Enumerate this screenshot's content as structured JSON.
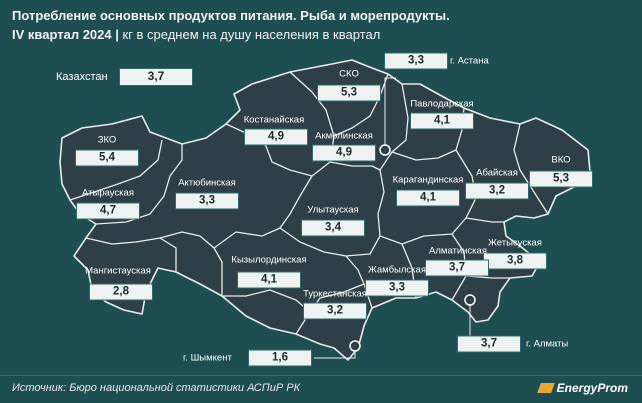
{
  "title": "Потребление основных продуктов питания. Рыба и морепродукты.",
  "subtitle_period": "IV квартал 2024",
  "subtitle_unit": "кг в среднем на душу населения в квартал",
  "colors": {
    "background": "#1e4e52",
    "map_fill": "#2f3f47",
    "border": "#e6ecec",
    "box_fill": "#eef3f2",
    "box_border": "#2b6b6b"
  },
  "national": {
    "label": "Казахстан",
    "value": "3,7"
  },
  "regions": [
    {
      "id": "sko",
      "label": "СКО",
      "value": "5,3"
    },
    {
      "id": "astana",
      "label": "г. Астана",
      "value": "3,3"
    },
    {
      "id": "pavlodar",
      "label": "Павлодарская",
      "value": "4,1"
    },
    {
      "id": "kostanay",
      "label": "Костанайская",
      "value": "4,9"
    },
    {
      "id": "akmola",
      "label": "Акмолинская",
      "value": "4,9"
    },
    {
      "id": "zko",
      "label": "ЗКО",
      "value": "5,4"
    },
    {
      "id": "vko",
      "label": "ВКО",
      "value": "5,3"
    },
    {
      "id": "abay",
      "label": "Абайская",
      "value": "3,2"
    },
    {
      "id": "atyrau",
      "label": "Атырауская",
      "value": "4,7"
    },
    {
      "id": "aktobe",
      "label": "Актюбинская",
      "value": "3,3"
    },
    {
      "id": "karaganda",
      "label": "Карагандинская",
      "value": "4,1"
    },
    {
      "id": "ulytau",
      "label": "Улытауская",
      "value": "3,4"
    },
    {
      "id": "zhetysu",
      "label": "Жетысуская",
      "value": "3,8"
    },
    {
      "id": "almaty_reg",
      "label": "Алматинская",
      "value": "3,7"
    },
    {
      "id": "mangystau",
      "label": "Мангистауская",
      "value": "2,8"
    },
    {
      "id": "kyzylorda",
      "label": "Кызылординская",
      "value": "4,1"
    },
    {
      "id": "zhambyl",
      "label": "Жамбылская",
      "value": "3,3"
    },
    {
      "id": "turkestan",
      "label": "Туркестанская",
      "value": "3,2"
    },
    {
      "id": "almaty_city",
      "label": "г. Алматы",
      "value": "3,7"
    },
    {
      "id": "shymkent",
      "label": "г. Шымкент",
      "value": "1,6"
    }
  ],
  "source": "Источник: Бюро национальной статистики АСПиР РК",
  "brand": "EnergyProm",
  "icons": {
    "brand_logo": "energyprom-logo-icon",
    "city_marker": "city-marker-icon"
  }
}
